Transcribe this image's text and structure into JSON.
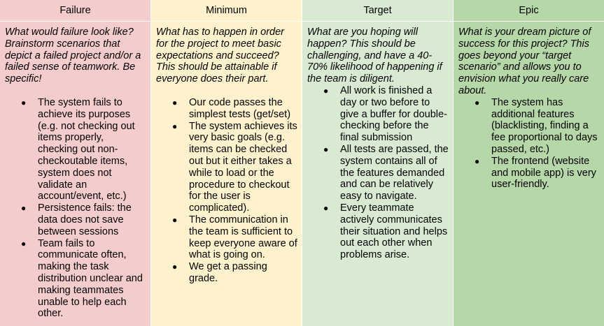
{
  "columns": [
    {
      "title": "Failure",
      "color": "#f4cccc",
      "prompt": "What would failure look like? Brainstorm scenarios that depict a failed project and/or a failed sense of teamwork. Be specific!",
      "items": [
        "The system fails to achieve its purposes (e.g. not checking out items properly, checking out non-checkoutable items, system does not validate an account/event, etc.)",
        "Persistence fails: the data does not save between sessions",
        "Team fails to communicate often, making the task distribution unclear and making teammates unable to help each other."
      ]
    },
    {
      "title": "Minimum",
      "color": "#fff2cc",
      "prompt": "What has to happen in order for the project to meet basic expectations and succeed? This should be attainable if everyone does their part.",
      "items": [
        "Our code passes the simplest tests (get/set)",
        "The system achieves its very basic goals (e.g. items can be checked out but it either takes a while to load or the procedure to checkout for the user is complicated).",
        "The communication in the team is sufficient to keep everyone aware of what is going on.",
        "We get a passing grade."
      ]
    },
    {
      "title": "Target",
      "color": "#d9ead3",
      "prompt": "What are you hoping will happen? This should be challenging, and have a 40-70% likelihood of happening if the team is diligent.",
      "items": [
        "All work is finished a day or two before to give a buffer for double-checking before the final submission",
        "All tests are passed, the system contains all of the features demanded and can be relatively easy to navigate.",
        "Every teammate actively communicates their situation and helps out each other when problems arise."
      ]
    },
    {
      "title": "Epic",
      "color": "#b6d7a8",
      "prompt": "What is your dream picture of success for this project? This goes beyond your “target scenario” and allows you to envision what you really care about.",
      "items": [
        "The system has additional features (blacklisting, finding a fee proportional to days passed, etc.)",
        "The frontend (website and mobile app) is very user-friendly."
      ]
    }
  ],
  "bullet_glyph": "●"
}
